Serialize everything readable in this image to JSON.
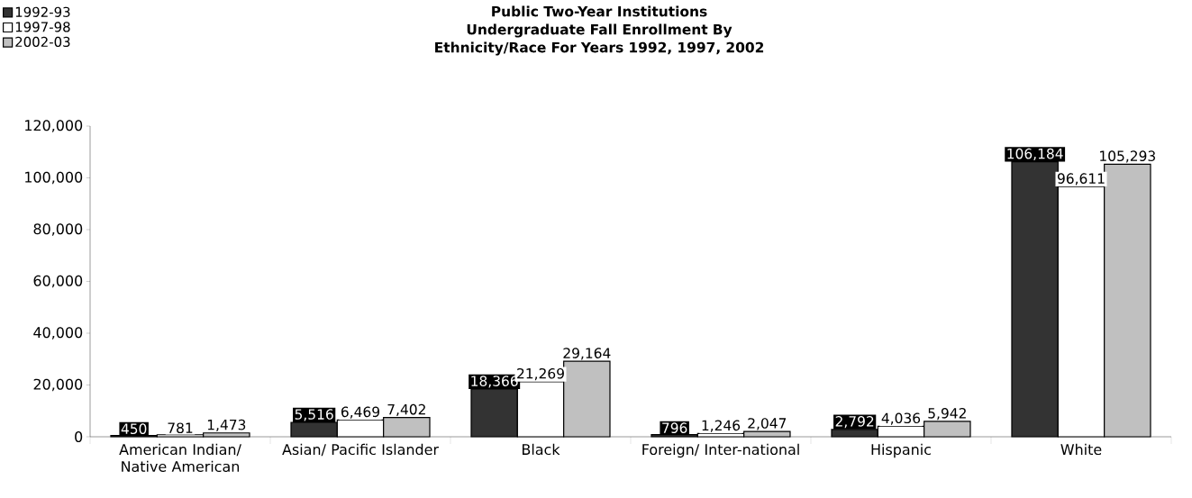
{
  "chart_data": {
    "type": "bar",
    "title": "Public Two-Year Institutions",
    "subtitle": "Undergraduate Fall Enrollment By Ethnicity/Race For Years 1992, 1997, 2002",
    "categories": [
      "American Indian/ Native American",
      "Asian/ Pacific Islander",
      "Black",
      "Foreign/ Inter-national",
      "Hispanic",
      "White"
    ],
    "series": [
      {
        "name": "1992-93",
        "color": "#333333",
        "values": [
          450,
          5516,
          18366,
          796,
          2792,
          106184
        ],
        "value_labels": [
          "450",
          "5,516",
          "18,366",
          "796",
          "2,792",
          "106,184"
        ]
      },
      {
        "name": "1997-98",
        "color": "#ffffff",
        "values": [
          781,
          6469,
          21269,
          1246,
          4036,
          96611
        ],
        "value_labels": [
          "781",
          "6,469",
          "21,269",
          "1,246",
          "4,036",
          "96,611"
        ]
      },
      {
        "name": "2002-03",
        "color": "#c0c0c0",
        "values": [
          1473,
          7402,
          29164,
          2047,
          5942,
          105293
        ],
        "value_labels": [
          "1,473",
          "7,402",
          "29,164",
          "2,047",
          "5,942",
          "105,293"
        ]
      }
    ],
    "ylim": [
      0,
      120000
    ],
    "yticks": [
      {
        "value": 0,
        "label": "0"
      },
      {
        "value": 20000,
        "label": "20,000"
      },
      {
        "value": 40000,
        "label": "40,000"
      },
      {
        "value": 60000,
        "label": "60,000"
      },
      {
        "value": 80000,
        "label": "80,000"
      },
      {
        "value": 100000,
        "label": "100,000"
      },
      {
        "value": 120000,
        "label": "120,000"
      }
    ],
    "legend": "top left",
    "grid": false
  }
}
